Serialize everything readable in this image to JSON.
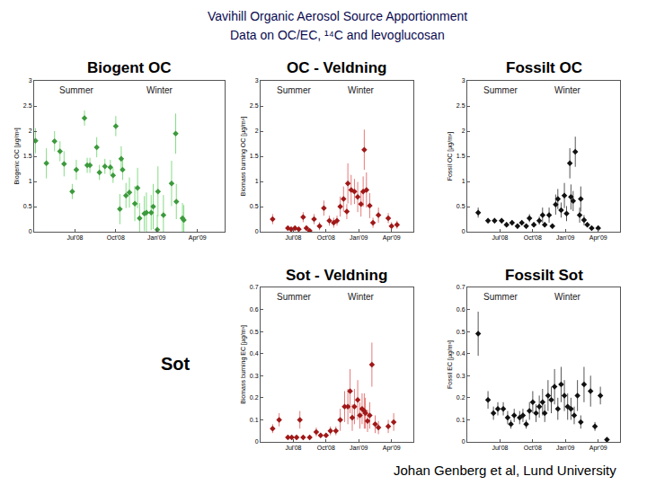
{
  "title": [
    "Vavihill Organic Aerosol Source Apportionment",
    "Data on OC/EC, ¹⁴C and levoglucosan"
  ],
  "row_label": "Sot",
  "credit": "Johan Genberg et al, Lund University",
  "chart_data": [
    {
      "type": "scatter",
      "title": "Biogent OC",
      "annotations": [
        "Summer",
        "Winter"
      ],
      "y_label": "Biogenic OC [µg/m³]",
      "color": "#3c9a3c",
      "error_color": "#86dc86",
      "marker": "diamond",
      "grid": false,
      "x": [
        4.1,
        4.9,
        5.5,
        5.9,
        6.2,
        6.8,
        7.1,
        7.7,
        7.9,
        8.1,
        8.6,
        8.8,
        9.2,
        9.6,
        9.8,
        10.0,
        10.4,
        10.5,
        10.75,
        11.0,
        10.3,
        11.4,
        11.6,
        11.75,
        12.1,
        12.25,
        12.6,
        12.75,
        13.1,
        13.5,
        13.05,
        14.1,
        14.4,
        14.45,
        14.9,
        15.0
      ],
      "values": [
        1.81,
        1.36,
        1.8,
        1.6,
        1.35,
        0.8,
        1.23,
        2.26,
        1.32,
        1.32,
        1.68,
        1.18,
        1.3,
        1.28,
        1.12,
        2.1,
        1.45,
        1.23,
        0.72,
        0.78,
        0.45,
        0.56,
        0.87,
        0.27,
        0.36,
        0.38,
        0.38,
        0.5,
        0.8,
        0.33,
        0.04,
        0.96,
        1.95,
        0.6,
        0.27,
        0.23
      ],
      "errors": [
        0.25,
        0.3,
        0.2,
        0.2,
        0.25,
        0.15,
        0.2,
        0.15,
        0.15,
        0.15,
        0.2,
        0.15,
        0.15,
        0.15,
        0.15,
        0.2,
        0.25,
        0.2,
        0.25,
        0.3,
        0.3,
        0.35,
        0.4,
        0.3,
        0.35,
        0.4,
        0.35,
        0.45,
        0.5,
        0.4,
        0.3,
        0.45,
        0.4,
        0.35,
        0.3,
        0.3
      ],
      "xlim": [
        4,
        18
      ],
      "xticks": [
        {
          "value": 7,
          "label": "Jul'08"
        },
        {
          "value": 10,
          "label": "Oct'08"
        },
        {
          "value": 13,
          "label": "Jan'09"
        },
        {
          "value": 16,
          "label": "Apr'09"
        }
      ],
      "ylim": [
        0,
        3
      ],
      "yticks": [
        0,
        0.5,
        1,
        1.5,
        2,
        2.5,
        3
      ]
    },
    {
      "type": "scatter",
      "title": "OC - Veldning",
      "annotations": [
        "Summer",
        "Winter"
      ],
      "y_label": "Biomass burning OC [µg/m³]",
      "color": "#a01818",
      "error_color": "#e57a7a",
      "marker": "diamond",
      "grid": false,
      "x": [
        5.1,
        6.5,
        6.8,
        7.15,
        7.5,
        7.9,
        8.2,
        8.5,
        8.9,
        9.4,
        9.8,
        10.3,
        10.7,
        11.0,
        11.3,
        11.6,
        11.9,
        12.0,
        12.3,
        12.6,
        12.9,
        13.2,
        13.4,
        13.5,
        13.7,
        14.0,
        14.3,
        14.8,
        15.7,
        16.0,
        16.5
      ],
      "values": [
        0.25,
        0.07,
        0.05,
        0.07,
        0.05,
        0.29,
        0.07,
        0.02,
        0.25,
        0.11,
        0.47,
        0.22,
        0.18,
        0.22,
        0.5,
        0.65,
        0.4,
        0.96,
        0.83,
        0.8,
        0.69,
        0.55,
        0.8,
        1.63,
        0.83,
        0.52,
        0.18,
        0.33,
        0.27,
        0.11,
        0.14
      ],
      "errors": [
        0.1,
        0.05,
        0.05,
        0.05,
        0.05,
        0.1,
        0.05,
        0.03,
        0.1,
        0.08,
        0.15,
        0.1,
        0.1,
        0.1,
        0.2,
        0.25,
        0.15,
        0.4,
        0.3,
        0.25,
        0.3,
        0.25,
        0.3,
        0.4,
        0.35,
        0.25,
        0.1,
        0.15,
        0.1,
        0.08,
        0.08
      ],
      "xlim": [
        4,
        18
      ],
      "xticks": [
        {
          "value": 7,
          "label": "Jul'08"
        },
        {
          "value": 10,
          "label": "Oct'08"
        },
        {
          "value": 13,
          "label": "Jan'09"
        },
        {
          "value": 16,
          "label": "Apr'09"
        }
      ],
      "ylim": [
        0,
        3
      ],
      "yticks": [
        0,
        0.5,
        1,
        1.5,
        2,
        2.5,
        3
      ]
    },
    {
      "type": "scatter",
      "title": "Fossilt OC",
      "annotations": [
        "Summer",
        "Winter"
      ],
      "y_label": "Fossil OC [µg/m³]",
      "color": "#111111",
      "error_color": "#555555",
      "marker": "diamond",
      "grid": false,
      "x": [
        5.0,
        5.9,
        6.5,
        7.15,
        7.6,
        8.1,
        8.6,
        9.0,
        9.4,
        9.7,
        10.1,
        10.6,
        10.9,
        11.1,
        11.5,
        11.8,
        12.1,
        12.3,
        12.6,
        12.9,
        13.1,
        13.4,
        13.5,
        13.7,
        13.9,
        14.3,
        14.4,
        14.7,
        15.0,
        15.4,
        16.0
      ],
      "values": [
        0.38,
        0.22,
        0.22,
        0.22,
        0.14,
        0.18,
        0.11,
        0.18,
        0.11,
        0.27,
        0.14,
        0.22,
        0.33,
        0.14,
        0.33,
        0.11,
        0.54,
        0.65,
        0.43,
        0.72,
        0.36,
        1.36,
        0.69,
        0.61,
        1.59,
        0.33,
        0.65,
        0.23,
        0.14,
        0.07,
        0.07
      ],
      "errors": [
        0.1,
        0.05,
        0.05,
        0.05,
        0.05,
        0.05,
        0.05,
        0.05,
        0.05,
        0.08,
        0.05,
        0.08,
        0.15,
        0.05,
        0.15,
        0.05,
        0.2,
        0.2,
        0.15,
        0.25,
        0.15,
        0.3,
        0.25,
        0.2,
        0.3,
        0.15,
        0.25,
        0.1,
        0.05,
        0.05,
        0.05
      ],
      "xlim": [
        4,
        18
      ],
      "xticks": [
        {
          "value": 7,
          "label": "Jul'08"
        },
        {
          "value": 10,
          "label": "Oct'08"
        },
        {
          "value": 13,
          "label": "Jan'09"
        },
        {
          "value": 16,
          "label": "Apr'09"
        }
      ],
      "ylim": [
        0,
        3
      ],
      "yticks": [
        0,
        0.5,
        1,
        1.5,
        2,
        2.5,
        3
      ]
    },
    {
      "type": "scatter",
      "title": "Sot - Veldning",
      "annotations": [
        "Summer",
        "Winter"
      ],
      "y_label": "Biomass burning EC [µg/m³]",
      "color": "#a01818",
      "error_color": "#e57a7a",
      "marker": "diamond",
      "grid": false,
      "x": [
        5.1,
        5.7,
        6.5,
        6.85,
        7.3,
        7.6,
        7.9,
        8.5,
        9.1,
        9.5,
        10.0,
        10.4,
        10.9,
        11.3,
        11.7,
        12.0,
        12.2,
        12.4,
        12.6,
        12.9,
        13.1,
        13.3,
        13.5,
        13.6,
        13.8,
        14.0,
        14.2,
        14.5,
        14.8,
        15.7,
        16.2
      ],
      "values": [
        0.06,
        0.1,
        0.02,
        0.02,
        0.02,
        0.1,
        0.02,
        0.02,
        0.045,
        0.03,
        0.03,
        0.05,
        0.05,
        0.1,
        0.16,
        0.16,
        0.23,
        0.11,
        0.16,
        0.19,
        0.12,
        0.15,
        0.14,
        0.13,
        0.095,
        0.12,
        0.35,
        0.08,
        0.065,
        0.07,
        0.09
      ],
      "errors": [
        0.02,
        0.03,
        0.01,
        0.01,
        0.01,
        0.04,
        0.01,
        0.01,
        0.02,
        0.01,
        0.01,
        0.02,
        0.02,
        0.05,
        0.07,
        0.08,
        0.1,
        0.06,
        0.08,
        0.09,
        0.06,
        0.07,
        0.08,
        0.07,
        0.05,
        0.06,
        0.1,
        0.04,
        0.03,
        0.03,
        0.04
      ],
      "xlim": [
        4,
        18
      ],
      "xticks": [
        {
          "value": 7,
          "label": "Jul'08"
        },
        {
          "value": 10,
          "label": "Oct'08"
        },
        {
          "value": 13,
          "label": "Jan'09"
        },
        {
          "value": 16,
          "label": "Apr'09"
        }
      ],
      "ylim": [
        0,
        0.7
      ],
      "yticks": [
        0,
        0.1,
        0.2,
        0.3,
        0.4,
        0.5,
        0.6,
        0.7
      ]
    },
    {
      "type": "scatter",
      "title": "Fossilt Sot",
      "annotations": [
        "Summer",
        "Winter"
      ],
      "y_label": "Fossil EC [µg/m³]",
      "color": "#111111",
      "error_color": "#555555",
      "marker": "diamond",
      "grid": false,
      "x": [
        5.0,
        5.9,
        6.4,
        6.8,
        7.3,
        7.7,
        8.0,
        8.3,
        8.8,
        9.1,
        9.4,
        9.7,
        10.0,
        10.3,
        10.6,
        10.9,
        11.1,
        11.4,
        11.7,
        12.0,
        12.3,
        12.6,
        12.9,
        13.2,
        13.5,
        13.8,
        14.1,
        14.4,
        14.7,
        15.3,
        15.7,
        16.2,
        16.8
      ],
      "values": [
        0.49,
        0.19,
        0.13,
        0.15,
        0.15,
        0.11,
        0.08,
        0.12,
        0.11,
        0.12,
        0.08,
        0.14,
        0.18,
        0.13,
        0.16,
        0.18,
        0.13,
        0.21,
        0.19,
        0.25,
        0.15,
        0.26,
        0.21,
        0.16,
        0.15,
        0.12,
        0.21,
        0.09,
        0.26,
        0.23,
        0.07,
        0.21,
        0.01
      ],
      "errors": [
        0.1,
        0.04,
        0.03,
        0.03,
        0.03,
        0.03,
        0.02,
        0.03,
        0.03,
        0.03,
        0.02,
        0.04,
        0.05,
        0.04,
        0.05,
        0.06,
        0.04,
        0.07,
        0.06,
        0.08,
        0.05,
        0.08,
        0.07,
        0.06,
        0.05,
        0.04,
        0.07,
        0.03,
        0.08,
        0.07,
        0.02,
        0.04,
        0.01
      ],
      "xlim": [
        4,
        18
      ],
      "xticks": [
        {
          "value": 7,
          "label": "Jul'08"
        },
        {
          "value": 10,
          "label": "Oct'08"
        },
        {
          "value": 13,
          "label": "Jan'09"
        },
        {
          "value": 16,
          "label": "Apr'09"
        }
      ],
      "ylim": [
        0,
        0.7
      ],
      "yticks": [
        0,
        0.1,
        0.2,
        0.3,
        0.4,
        0.5,
        0.6,
        0.7
      ]
    }
  ]
}
